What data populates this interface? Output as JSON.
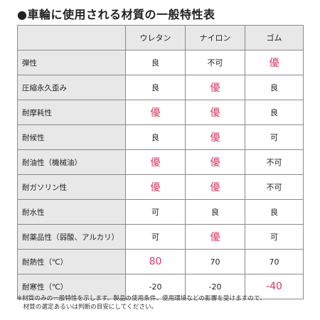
{
  "title": "●車輪に使用される材質の一般特性表",
  "colors": {
    "best_bg": "#fbe9ee",
    "best_text": "#d8375f",
    "poor_bg": "#e6f1fb",
    "header_bg": "#e8e8e8"
  },
  "table": {
    "columns": [
      "",
      "ウレタン",
      "ナイロン",
      "ゴム"
    ],
    "rows": [
      {
        "label": "弾性",
        "cells": [
          {
            "v": "良",
            "s": ""
          },
          {
            "v": "不可",
            "s": "poor"
          },
          {
            "v": "優",
            "s": "best"
          }
        ]
      },
      {
        "label": "圧縮永久歪み",
        "cells": [
          {
            "v": "良",
            "s": ""
          },
          {
            "v": "優",
            "s": "best"
          },
          {
            "v": "良",
            "s": ""
          }
        ]
      },
      {
        "label": "耐摩耗性",
        "cells": [
          {
            "v": "優",
            "s": "best"
          },
          {
            "v": "優",
            "s": "best"
          },
          {
            "v": "良",
            "s": ""
          }
        ]
      },
      {
        "label": "耐候性",
        "cells": [
          {
            "v": "良",
            "s": ""
          },
          {
            "v": "優",
            "s": "best"
          },
          {
            "v": "可",
            "s": ""
          }
        ]
      },
      {
        "label": "耐油性（機械油）",
        "cells": [
          {
            "v": "優",
            "s": "best"
          },
          {
            "v": "優",
            "s": "best"
          },
          {
            "v": "不可",
            "s": "poor"
          }
        ]
      },
      {
        "label": "耐ガソリン性",
        "cells": [
          {
            "v": "優",
            "s": "best"
          },
          {
            "v": "優",
            "s": "best"
          },
          {
            "v": "不可",
            "s": "poor"
          }
        ]
      },
      {
        "label": "耐水性",
        "cells": [
          {
            "v": "可",
            "s": ""
          },
          {
            "v": "良",
            "s": ""
          },
          {
            "v": "良",
            "s": ""
          }
        ]
      },
      {
        "label": "耐薬品性（弱酸、アルカリ）",
        "cells": [
          {
            "v": "可",
            "s": ""
          },
          {
            "v": "優",
            "s": "best"
          },
          {
            "v": "可",
            "s": ""
          }
        ]
      },
      {
        "label": "耐熱性（℃）",
        "cells": [
          {
            "v": "80",
            "s": "best"
          },
          {
            "v": "70",
            "s": ""
          },
          {
            "v": "70",
            "s": ""
          }
        ]
      },
      {
        "label": "耐寒性（℃）",
        "cells": [
          {
            "v": "-20",
            "s": ""
          },
          {
            "v": "-20",
            "s": ""
          },
          {
            "v": "-40",
            "s": "best"
          }
        ]
      }
    ]
  },
  "note": {
    "line1": "※材質のみの一般特性を示します。製品の使用条件、使用環境などの影響を受けますので、",
    "line2": "　材質の選定あるいは判断の目安にしてください。"
  }
}
